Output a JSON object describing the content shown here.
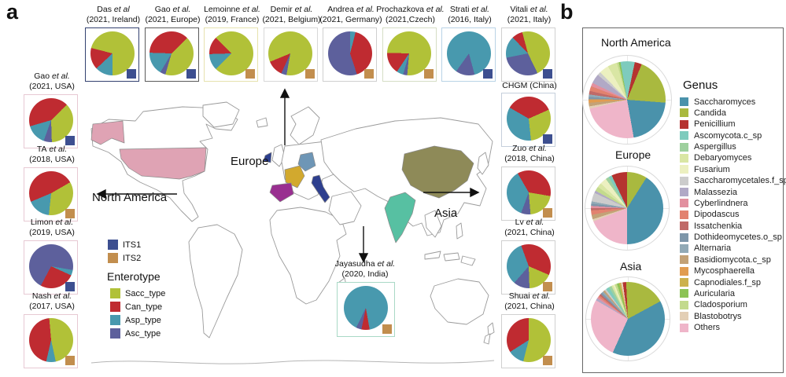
{
  "figure": {
    "panel_a_label": "a",
    "panel_b_label": "b",
    "map_labels": {
      "north_america": "North America",
      "europe": "Europe",
      "asia": "Asia"
    },
    "its_legend": [
      {
        "label": "ITS1",
        "color": "#3d4f90"
      },
      {
        "label": "ITS2",
        "color": "#c28e4e"
      }
    ],
    "enterotype_legend": {
      "title": "Enterotype",
      "items": [
        {
          "label": "Sacc_type",
          "color": "#b1c138"
        },
        {
          "label": "Can_type",
          "color": "#bf2b31"
        },
        {
          "label": "Asp_type",
          "color": "#4899ae"
        },
        {
          "label": "Asc_type",
          "color": "#5d609c"
        }
      ]
    },
    "map_countries": {
      "usa": "#dfa3b4",
      "alaska": "#dfa3b4",
      "ireland": "#2c3f8d",
      "france": "#d2a92e",
      "germany": "#6e96b6",
      "spain": "#992f90",
      "italy": "#2e3f8e",
      "china": "#8e8a58",
      "india": "#57c0a2"
    }
  },
  "chart_data": {
    "type": "pie-collection",
    "its_colors": {
      "ITS1": "#3d4f90",
      "ITS2": "#c28e4e"
    },
    "enterotype_colors": {
      "Sacc_type": "#b1c138",
      "Can_type": "#bf2b31",
      "Asp_type": "#4899ae",
      "Asc_type": "#5d609c"
    },
    "genus_colors": {
      "Saccharomyces": "#4a92ab",
      "Candida": "#a9b93f",
      "Penicillium": "#b53330",
      "Ascomycota.c_sp": "#7ecbbd",
      "Aspergillus": "#9ed09e",
      "Debaryomyces": "#d9e6a4",
      "Fusarium": "#ecf0c0",
      "Saccharomycetales.f_sp": "#cccccc",
      "Malassezia": "#b1a9c6",
      "Cyberlindnera": "#e2909f",
      "Dipodascus": "#e2826f",
      "Issatchenkia": "#c06a68",
      "Dothideomycetes.o_sp": "#7e96a9",
      "Alternaria": "#92aab6",
      "Basidiomycota.c_sp": "#c3a277",
      "Mycosphaerella": "#e19c50",
      "Capnodiales.f_sp": "#ccb14c",
      "Auricularia": "#8cc355",
      "Cladosporium": "#c3da8d",
      "Blastobotrys": "#e3cfb6",
      "Others": "#efb5c9"
    },
    "studies": [
      {
        "id": "das",
        "author": "Das",
        "suffix": "et al",
        "detail": "(2021, Ireland)",
        "marker": "ITS1",
        "border": "#33416f",
        "start": 180,
        "slices": [
          [
            "Asp_type",
            13
          ],
          [
            "Can_type",
            16
          ],
          [
            "Sacc_type",
            71
          ]
        ]
      },
      {
        "id": "gao_eu",
        "author": "Gao",
        "suffix": "et al.",
        "detail": "(2021, Europe)",
        "marker": "ITS1",
        "border": "#5a5a5a",
        "start": 45,
        "slices": [
          [
            "Sacc_type",
            42
          ],
          [
            "Asc_type",
            4
          ],
          [
            "Asp_type",
            17
          ],
          [
            "Can_type",
            37
          ]
        ]
      },
      {
        "id": "lemoinne",
        "author": "Lemoinne",
        "suffix": "et al.",
        "detail": "(2019, France)",
        "marker": "ITS2",
        "border": "#e6e2ae",
        "start": 225,
        "slices": [
          [
            "Asp_type",
            12
          ],
          [
            "Can_type",
            13
          ],
          [
            "Sacc_type",
            75
          ]
        ]
      },
      {
        "id": "demir",
        "author": "Demir",
        "suffix": "et al.",
        "detail": "(2021, Belgium)",
        "marker": "ITS2",
        "border": "#d8d8d8",
        "start": 190,
        "slices": [
          [
            "Asc_type",
            4
          ],
          [
            "Can_type",
            12
          ],
          [
            "Sacc_type",
            84
          ]
        ]
      },
      {
        "id": "andrea",
        "author": "Andrea",
        "suffix": "et al.",
        "detail": "(2021, Germany)",
        "marker": "ITS2",
        "border": "#cfcfcf",
        "start": 0,
        "slices": [
          [
            "Asp_type",
            4
          ],
          [
            "Can_type",
            41
          ],
          [
            "Asc_type",
            55
          ]
        ]
      },
      {
        "id": "prochazkova",
        "author": "Prochazkova",
        "suffix": "et al.",
        "detail": "(2021,Czech)",
        "marker": "ITS2",
        "border": "#d5ddc5",
        "start": 185,
        "slices": [
          [
            "Asc_type",
            3
          ],
          [
            "Asp_type",
            5
          ],
          [
            "Can_type",
            16
          ],
          [
            "Sacc_type",
            76
          ]
        ]
      },
      {
        "id": "strati",
        "author": "Strati",
        "suffix": "et al.",
        "detail": "(2016, Italy)",
        "marker": "ITS1",
        "border": "#b9d3e6",
        "start": 165,
        "slices": [
          [
            "Asc_type",
            14
          ],
          [
            "Asp_type",
            86
          ]
        ]
      },
      {
        "id": "vitali",
        "author": "Vitali",
        "suffix": "et al.",
        "detail": "(2021, Italy)",
        "marker": "ITS1",
        "border": "#d0d0d0",
        "start": 345,
        "slices": [
          [
            "Sacc_type",
            47
          ],
          [
            "Asc_type",
            29
          ],
          [
            "Asp_type",
            16
          ],
          [
            "Can_type",
            8
          ]
        ]
      },
      {
        "id": "gao_usa",
        "author": "Gao",
        "suffix": "et al.",
        "detail": "(2021, USA)",
        "marker": "ITS1",
        "border": "#e7c9d3",
        "start": 45,
        "slices": [
          [
            "Sacc_type",
            37
          ],
          [
            "Asc_type",
            6
          ],
          [
            "Asp_type",
            15
          ],
          [
            "Can_type",
            42
          ]
        ]
      },
      {
        "id": "ta",
        "author": "TA",
        "suffix": "et al.",
        "detail": "(2018, USA)",
        "marker": "ITS2",
        "border": "#e7c9d3",
        "start": 60,
        "slices": [
          [
            "Sacc_type",
            35
          ],
          [
            "Asp_type",
            17
          ],
          [
            "Can_type",
            48
          ]
        ]
      },
      {
        "id": "limon",
        "author": "Limon",
        "suffix": "et al.",
        "detail": "(2019, USA)",
        "marker": "ITS1",
        "border": "#e7c9d3",
        "start": 100,
        "slices": [
          [
            "Asp_type",
            4
          ],
          [
            "Can_type",
            26
          ],
          [
            "Asc_type",
            70
          ]
        ]
      },
      {
        "id": "nash",
        "author": "Nash",
        "suffix": "et al.",
        "detail": "(2017, USA)",
        "marker": "ITS2",
        "border": "#e7c9d3",
        "start": 355,
        "slices": [
          [
            "Sacc_type",
            48
          ],
          [
            "Asp_type",
            7
          ],
          [
            "Can_type",
            45
          ]
        ]
      },
      {
        "id": "chgm",
        "author": "CHGM (China)",
        "suffix": "",
        "detail": "",
        "marker": "ITS1",
        "border": "#c5cfdb",
        "start": 300,
        "slices": [
          [
            "Can_type",
            35
          ],
          [
            "Sacc_type",
            30
          ],
          [
            "Asp_type",
            35
          ]
        ]
      },
      {
        "id": "zuo",
        "author": "Zuo",
        "suffix": "et al.",
        "detail": "(2018, China)",
        "marker": "ITS2",
        "border": "#d0d0d0",
        "start": 330,
        "slices": [
          [
            "Can_type",
            36
          ],
          [
            "Sacc_type",
            21
          ],
          [
            "Asc_type",
            7
          ],
          [
            "Asp_type",
            36
          ]
        ]
      },
      {
        "id": "lv",
        "author": "Lv",
        "suffix": "et al.",
        "detail": "(2021, China)",
        "marker": "ITS2",
        "border": "#d0d0d0",
        "start": 340,
        "slices": [
          [
            "Can_type",
            37
          ],
          [
            "Sacc_type",
            18
          ],
          [
            "Asc_type",
            12
          ],
          [
            "Asp_type",
            33
          ]
        ]
      },
      {
        "id": "shuai",
        "author": "Shuai",
        "suffix": "et al.",
        "detail": "(2021, China)",
        "marker": "ITS2",
        "border": "#d0d0d0",
        "start": 0,
        "slices": [
          [
            "Sacc_type",
            54
          ],
          [
            "Asp_type",
            12
          ],
          [
            "Can_type",
            34
          ]
        ]
      },
      {
        "id": "jayasudha",
        "author": "Jayasudha",
        "suffix": "et al.",
        "detail": "(2020, India)",
        "marker": "ITS2",
        "border": "#a9d9c6",
        "start": 170,
        "slices": [
          [
            "Can_type",
            6
          ],
          [
            "Asc_type",
            4
          ],
          [
            "Asp_type",
            90
          ]
        ]
      }
    ],
    "continents": [
      {
        "id": "north_america",
        "title": "North America",
        "start": 350,
        "slices": [
          [
            "Ascomycota.c_sp",
            6
          ],
          [
            "Penicillium",
            3
          ],
          [
            "Candida",
            20
          ],
          [
            "Saccharomyces",
            21
          ],
          [
            "Others",
            24
          ],
          [
            "Blastobotrys",
            1
          ],
          [
            "Basidiomycota.c_sp",
            1.5
          ],
          [
            "Mycosphaerella",
            1.5
          ],
          [
            "Dothideomycetes.o_sp",
            1
          ],
          [
            "Alternaria",
            1
          ],
          [
            "Issatchenkia",
            1.5
          ],
          [
            "Dipodascus",
            2
          ],
          [
            "Cyberlindnera",
            1.5
          ],
          [
            "Malassezia",
            4
          ],
          [
            "Saccharomycetales.f_sp",
            1.5
          ],
          [
            "Fusarium",
            4
          ],
          [
            "Debaryomyces",
            4
          ],
          [
            "Cladosporium",
            0.8
          ],
          [
            "Auricularia",
            0.7
          ]
        ]
      },
      {
        "id": "europe",
        "title": "Europe",
        "start": 0,
        "slices": [
          [
            "Candida",
            9
          ],
          [
            "Saccharomyces",
            41
          ],
          [
            "Others",
            19
          ],
          [
            "Blastobotrys",
            1
          ],
          [
            "Basidiomycota.c_sp",
            2
          ],
          [
            "Dipodascus",
            2
          ],
          [
            "Issatchenkia",
            1
          ],
          [
            "Cyberlindnera",
            1
          ],
          [
            "Dothideomycetes.o_sp",
            1
          ],
          [
            "Alternaria",
            1
          ],
          [
            "Saccharomycetales.f_sp",
            4
          ],
          [
            "Malassezia",
            1
          ],
          [
            "Cladosporium",
            2
          ],
          [
            "Debaryomyces",
            2
          ],
          [
            "Fusarium",
            3
          ],
          [
            "Aspergillus",
            1.5
          ],
          [
            "Ascomycota.c_sp",
            1.5
          ],
          [
            "Penicillium",
            7
          ]
        ]
      },
      {
        "id": "asia",
        "title": "Asia",
        "start": 352,
        "slices": [
          [
            "Penicillium",
            1.5
          ],
          [
            "Candida",
            18
          ],
          [
            "Saccharomyces",
            40
          ],
          [
            "Others",
            27
          ],
          [
            "Malassezia",
            1
          ],
          [
            "Cyberlindnera",
            0.8
          ],
          [
            "Dipodascus",
            0.8
          ],
          [
            "Issatchenkia",
            0.8
          ],
          [
            "Dothideomycetes.o_sp",
            0.8
          ],
          [
            "Alternaria",
            0.8
          ],
          [
            "Basidiomycota.c_sp",
            0.8
          ],
          [
            "Saccharomycetales.f_sp",
            0.8
          ],
          [
            "Ascomycota.c_sp",
            1.5
          ],
          [
            "Aspergillus",
            1.2
          ],
          [
            "Debaryomyces",
            0.8
          ],
          [
            "Fusarium",
            0.8
          ],
          [
            "Cladosporium",
            1
          ],
          [
            "Auricularia",
            1
          ],
          [
            "Capnodiales.f_sp",
            0.8
          ],
          [
            "Blastobotrys",
            0.8
          ]
        ]
      }
    ],
    "genus_legend": {
      "title": "Genus",
      "order": [
        "Saccharomyces",
        "Candida",
        "Penicillium",
        "Ascomycota.c_sp",
        "Aspergillus",
        "Debaryomyces",
        "Fusarium",
        "Saccharomycetales.f_sp",
        "Malassezia",
        "Cyberlindnera",
        "Dipodascus",
        "Issatchenkia",
        "Dothideomycetes.o_sp",
        "Alternaria",
        "Basidiomycota.c_sp",
        "Mycosphaerella",
        "Capnodiales.f_sp",
        "Auricularia",
        "Cladosporium",
        "Blastobotrys",
        "Others"
      ]
    }
  }
}
